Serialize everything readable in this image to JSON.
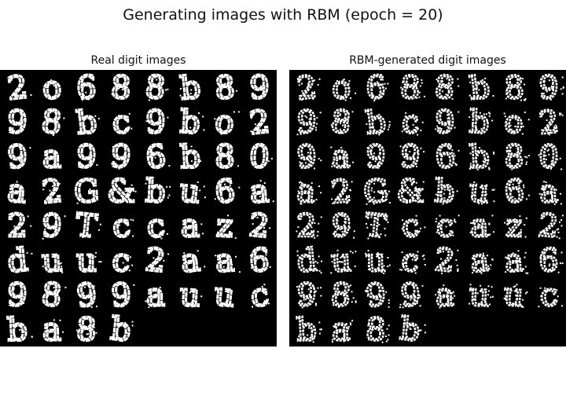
{
  "figure": {
    "title": "Generating images with RBM (epoch = 20)"
  },
  "panels": [
    {
      "title": "Real digit images",
      "noise": 0
    },
    {
      "title": "RBM-generated digit images",
      "noise": 1
    }
  ],
  "grid": {
    "rows": 8,
    "cols": 8,
    "count": 60
  },
  "colors": {
    "ink": "#ffffff",
    "background": "#000000"
  },
  "glyph_rows": [
    [
      "2",
      "o",
      "6",
      "8",
      "8",
      "b",
      "8",
      "9"
    ],
    [
      "9",
      "8",
      "b",
      "c",
      "9",
      "b",
      "o",
      "2"
    ],
    [
      "9",
      "a",
      "9",
      "9",
      "6",
      "b",
      "8",
      "0"
    ],
    [
      "a",
      "2",
      "G",
      "&",
      "b",
      "u",
      "6",
      "a"
    ],
    [
      "2",
      "9",
      "T",
      "c",
      "c",
      "a",
      "z",
      "2"
    ],
    [
      "d",
      "u",
      "u",
      "c",
      "2",
      "a",
      "a",
      "6"
    ],
    [
      "9",
      "8",
      "9",
      "9",
      "a",
      "u",
      "u",
      "c"
    ],
    [
      "b",
      "a",
      "8",
      "b"
    ]
  ]
}
